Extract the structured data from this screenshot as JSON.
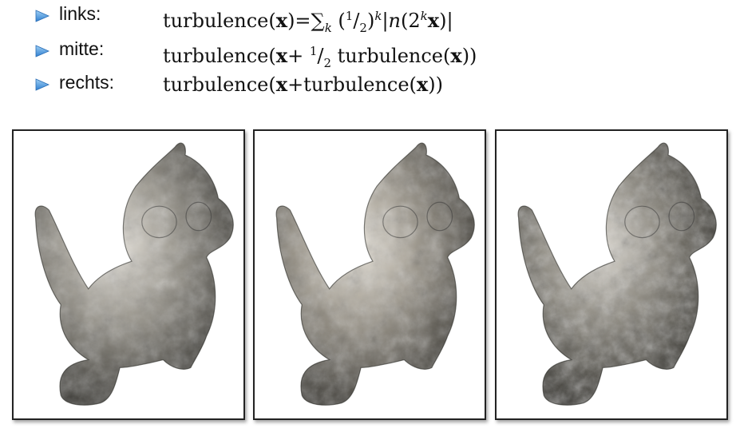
{
  "bullets": [
    {
      "label": "links:"
    },
    {
      "label": "mitte:"
    },
    {
      "label": "rechts:"
    }
  ],
  "formulas": {
    "left": {
      "func": "turbulence(",
      "var": "x",
      "close_eq": ")=",
      "sum": "∑",
      "sum_sub": "k",
      "frac_open": " (",
      "frac_num": "1",
      "frac_slash": "/",
      "frac_den": "2",
      "frac_close": ")",
      "pow": "k",
      "abs_open": "|",
      "n": "n",
      "paren_open": "(",
      "two": "2",
      "two_pow": "k",
      "var2": "x",
      "paren_close": ")",
      "abs_close": "|"
    },
    "middle": {
      "func": "turbulence(",
      "var": "x",
      "plus": "+ ",
      "frac_num": "1",
      "frac_slash": "/",
      "frac_den": "2",
      "inner": " turbulence(",
      "var2": "x",
      "close": "))"
    },
    "right": {
      "func": "turbulence(",
      "var": "x",
      "plus": "+turbulence(",
      "var2": "x",
      "close": "))"
    }
  },
  "colors": {
    "bullet_arrow": "#4a90d9",
    "frame_border": "#222222"
  },
  "images": [
    {
      "icon": "marble-bird-figure"
    },
    {
      "icon": "marble-bird-figure"
    },
    {
      "icon": "marble-bird-figure"
    }
  ]
}
